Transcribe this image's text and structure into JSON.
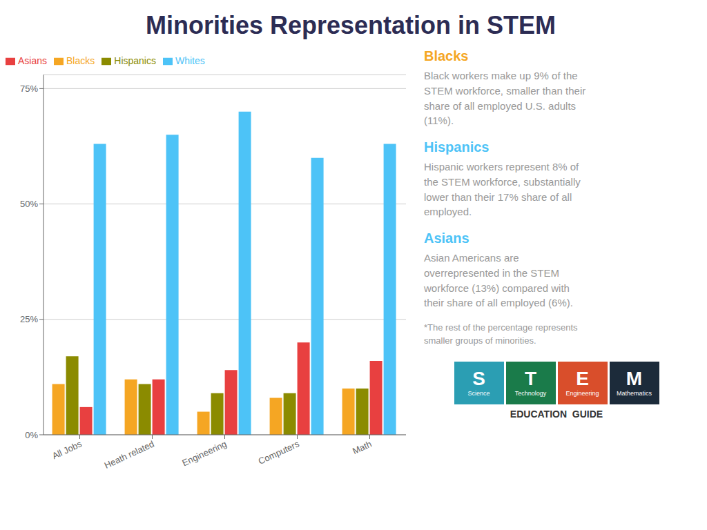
{
  "chart_data": {
    "type": "bar",
    "title": "Minorities Representation in STEM",
    "categories": [
      "All Jobs",
      "Heath related",
      "Engineering",
      "Computers",
      "Math"
    ],
    "series": [
      {
        "name": "Blacks",
        "color": "#F5A623",
        "values": [
          11,
          12,
          5,
          8,
          10
        ]
      },
      {
        "name": "Hispanics",
        "color": "#8B8B00",
        "values": [
          17,
          11,
          9,
          9,
          10
        ]
      },
      {
        "name": "Asians",
        "color": "#E84040",
        "values": [
          6,
          12,
          14,
          20,
          16
        ]
      },
      {
        "name": "Whites",
        "color": "#4DC3F7",
        "values": [
          63,
          65,
          70,
          60,
          63
        ]
      }
    ],
    "ylim": [
      0,
      78
    ],
    "yticks": [
      {
        "value": 0,
        "label": "0%"
      },
      {
        "value": 25,
        "label": "25%"
      },
      {
        "value": 50,
        "label": "50%"
      },
      {
        "value": 75,
        "label": "75%"
      }
    ],
    "grid": true,
    "legend": "top",
    "annotations": [
      {
        "title": "Blacks",
        "color": "#F5A623",
        "text": "Black workers make up 9% of the\nSTEM workforce, smaller than their\nshare of all employed U.S. adults\n(11%)."
      },
      {
        "title": "Hispanics",
        "color": "#4DC3F7",
        "text": "Hispanic workers represent 8% of\nthe STEM workforce, substantially\nlower than their 17% share of all\nemployed."
      },
      {
        "title": "Asians",
        "color": "#4DC3F7",
        "text": "Asian Americans are\noverrepresented in the STEM\nworkforce (13%) compared with\ntheir share of all employed (6%)."
      },
      {
        "text": "*The rest of the percentage represents\nsmaller groups of minorities."
      }
    ],
    "logo": {
      "boxes": [
        {
          "text": "S",
          "label": "Science",
          "color": "#2B9EB3"
        },
        {
          "text": "T",
          "label": "Technology",
          "color": "#1A7B4A"
        },
        {
          "text": "E",
          "label": "Engineering",
          "color": "#D94E2B"
        },
        {
          "text": "M",
          "label": "Mathematics",
          "color": "#1C2B3A"
        }
      ],
      "caption": "EDUCATION  GUIDE"
    }
  }
}
